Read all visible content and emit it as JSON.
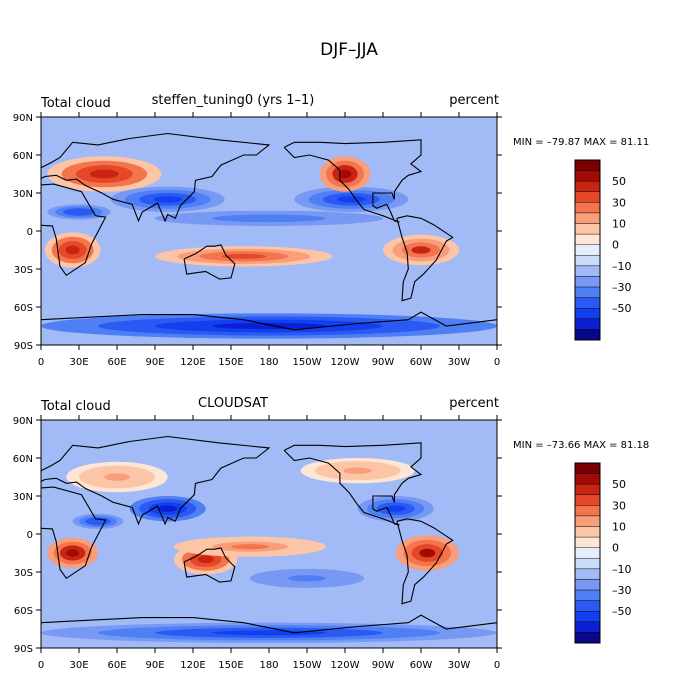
{
  "figure": {
    "title": "DJF–JJA"
  },
  "colors": {
    "levels": [
      -60,
      -50,
      -40,
      -30,
      -20,
      -10,
      -5,
      0,
      5,
      10,
      20,
      30,
      40,
      50,
      60,
      70
    ],
    "palette": [
      "#08088a",
      "#0b1fd4",
      "#1240ee",
      "#2a5af3",
      "#4f7ff5",
      "#7799f3",
      "#a2baf6",
      "#cbdcfa",
      "#e4eefc",
      "#fde6d6",
      "#fcc6a6",
      "#f99e7b",
      "#f4744e",
      "#e44828",
      "#c82412",
      "#a20a05",
      "#780000"
    ]
  },
  "panels": [
    {
      "left_label": "Total cloud",
      "center_label": "steffen_tuning0 (yrs 1–1)",
      "right_label": "percent",
      "stats": "MIN = –79.87  MAX =  81.11",
      "lat_ticks": [
        "90N",
        "60N",
        "30N",
        "0",
        "30S",
        "60S",
        "90S"
      ],
      "lon_ticks": [
        "0",
        "30E",
        "60E",
        "90E",
        "120E",
        "150E",
        "180",
        "150W",
        "120W",
        "90W",
        "60W",
        "30W",
        "0"
      ],
      "colorbar_labels": [
        "50",
        "30",
        "10",
        "0",
        "–10",
        "–30",
        "–50"
      ],
      "anomaly_blobs": [
        {
          "lon": 50,
          "lat": 45,
          "rx": 45,
          "ry": 14,
          "v": 55
        },
        {
          "lon": 100,
          "lat": 25,
          "rx": 45,
          "ry": 10,
          "v": -50
        },
        {
          "lon": 25,
          "lat": -15,
          "rx": 22,
          "ry": 14,
          "v": 55
        },
        {
          "lon": 160,
          "lat": -20,
          "rx": 70,
          "ry": 8,
          "v": 45
        },
        {
          "lon": 245,
          "lat": 25,
          "rx": 45,
          "ry": 10,
          "v": -50
        },
        {
          "lon": 240,
          "lat": 45,
          "rx": 20,
          "ry": 14,
          "v": 65
        },
        {
          "lon": 300,
          "lat": -15,
          "rx": 30,
          "ry": 12,
          "v": 50
        },
        {
          "lon": 180,
          "lat": -75,
          "rx": 180,
          "ry": 10,
          "v": -60
        },
        {
          "lon": 180,
          "lat": 10,
          "rx": 90,
          "ry": 6,
          "v": -30
        },
        {
          "lon": 30,
          "lat": 15,
          "rx": 25,
          "ry": 6,
          "v": -40
        }
      ]
    },
    {
      "left_label": "Total cloud",
      "center_label": "CLOUDSAT",
      "right_label": "percent",
      "stats": "MIN = –73.66  MAX =  81.18",
      "lat_ticks": [
        "90N",
        "60N",
        "30N",
        "0",
        "30S",
        "60S",
        "90S"
      ],
      "lon_ticks": [
        "0",
        "30E",
        "60E",
        "90E",
        "120E",
        "150E",
        "180",
        "150W",
        "120W",
        "90W",
        "60W",
        "30W",
        "0"
      ],
      "colorbar_labels": [
        "50",
        "30",
        "10",
        "0",
        "–10",
        "–30",
        "–50"
      ],
      "anomaly_blobs": [
        {
          "lon": 25,
          "lat": -15,
          "rx": 20,
          "ry": 12,
          "v": 65
        },
        {
          "lon": 100,
          "lat": 20,
          "rx": 30,
          "ry": 10,
          "v": -60
        },
        {
          "lon": 130,
          "lat": -20,
          "rx": 25,
          "ry": 12,
          "v": 55
        },
        {
          "lon": 165,
          "lat": -10,
          "rx": 60,
          "ry": 8,
          "v": 30
        },
        {
          "lon": 305,
          "lat": -15,
          "rx": 25,
          "ry": 14,
          "v": 60
        },
        {
          "lon": 280,
          "lat": 20,
          "rx": 30,
          "ry": 10,
          "v": -45
        },
        {
          "lon": 180,
          "lat": -78,
          "rx": 180,
          "ry": 8,
          "v": -50
        },
        {
          "lon": 60,
          "lat": 45,
          "rx": 40,
          "ry": 12,
          "v": 25
        },
        {
          "lon": 250,
          "lat": 50,
          "rx": 45,
          "ry": 10,
          "v": 20
        },
        {
          "lon": 210,
          "lat": -35,
          "rx": 60,
          "ry": 10,
          "v": -25
        },
        {
          "lon": 45,
          "lat": 10,
          "rx": 20,
          "ry": 6,
          "v": -40
        }
      ]
    }
  ]
}
